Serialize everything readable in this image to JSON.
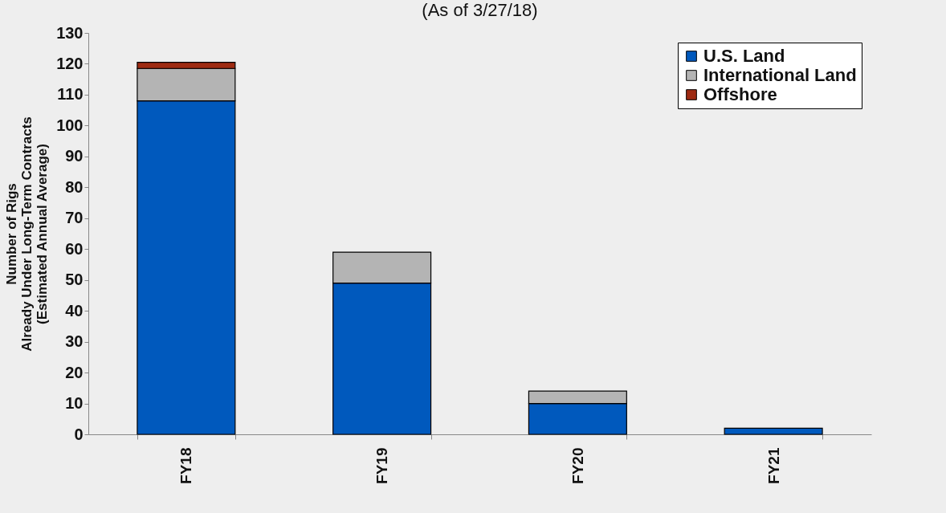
{
  "chart_data": {
    "type": "bar",
    "title": "(As of 3/27/18)",
    "ylabel": "Number of Rigs\nAlready Under Long-Term Contracts\n(Estimated Annual Average)",
    "categories": [
      "FY18",
      "FY19",
      "FY20",
      "FY21"
    ],
    "stacked": true,
    "series": [
      {
        "name": "U.S. Land",
        "color": "#0059bd",
        "values": [
          108,
          49,
          10,
          2
        ]
      },
      {
        "name": "International Land",
        "color": "#b4b4b4",
        "values": [
          10.5,
          10,
          4,
          null
        ]
      },
      {
        "name": "Offshore",
        "color": "#9e2a12",
        "values": [
          2,
          null,
          null,
          null
        ]
      }
    ],
    "ylim": [
      0,
      130
    ],
    "yticks": [
      0,
      10,
      20,
      30,
      40,
      50,
      60,
      70,
      80,
      90,
      100,
      110,
      120,
      130
    ],
    "grid": false,
    "legend": "top right"
  }
}
